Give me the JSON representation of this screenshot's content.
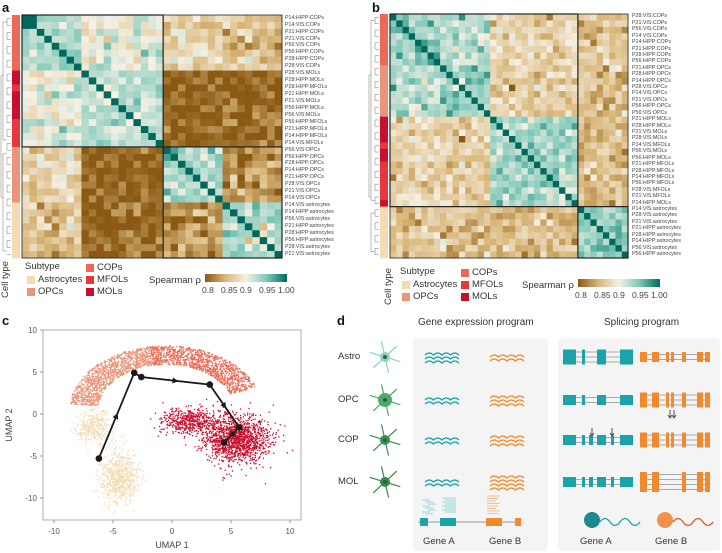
{
  "panels": {
    "a": "a",
    "b": "b",
    "c": "c",
    "d": "d"
  },
  "colors": {
    "Astrocytes": "#f4dbb4",
    "OPCs": "#ea9479",
    "COPs": "#ec6a55",
    "MFOLs": "#e6383a",
    "MOLs": "#c8102e",
    "scale": [
      "#8a5a14",
      "#d9b77a",
      "#f6f1e6",
      "#7fc8b9",
      "#00695c"
    ],
    "teal": "#1aa3a8",
    "orange": "#f08a2c"
  },
  "legend": {
    "cell_type": "Cell type",
    "subtype_title": "Subtype",
    "subtypes": [
      "Astrocytes",
      "OPCs",
      "COPs",
      "MFOLs",
      "MOLs"
    ],
    "spearman": "Spearman ρ",
    "ticks": [
      "0.8",
      "0.85",
      "0.9",
      "0.95",
      "1.00"
    ]
  },
  "chart_data": [
    {
      "type": "heatmap",
      "panel": "a",
      "value_range": [
        0.8,
        1.0
      ],
      "labels": [
        "P14:HIPP:COPs",
        "P14:VIS:COPs",
        "P21:HIPP:COPs",
        "P21:VIS:COPs",
        "P56:VIS:COPs",
        "P56:HIPP:COPs",
        "P28:HIPP:COPs",
        "P28:VIS:COPs",
        "P28:VIS:MOLs",
        "P28:HIPP:MOLs",
        "P28:HIPP:MFOLs",
        "P21:HIPP:MOLs",
        "P21:VIS:MOLs",
        "P56:HIPP:MOLs",
        "P56:VIS:MOLs",
        "P56:HIPP:MFOLs",
        "P21:HIPP:MFOLs",
        "P14:HIPP:MFOLs",
        "P14:VIS:MFOLs",
        "P56:VIS:OPCs",
        "P56:HIPP:OPCs",
        "P28:HIPP:OPCs",
        "P14:HIPP:OPCs",
        "P21:HIPP:OPCs",
        "P28:VIS:OPCs",
        "P21:VIS:OPCs",
        "P14:VIS:OPCs",
        "P14:VIS:astrocytes",
        "P14:HIPP:astrocytes",
        "P56:VIS:astrocytes",
        "P21:HIPP:astrocytes",
        "P28:HIPP:astrocytes",
        "P56:HIPP:astrocytes",
        "P28:VIS:astrocytes",
        "P21:VIS:astrocytes"
      ],
      "group_similarity_approx": {
        "COPs": {
          "COPs": 0.935,
          "OLs": 0.9,
          "OPCs": 0.875,
          "astrocytes": 0.86
        },
        "OLs": {
          "COPs": 0.9,
          "OLs": 0.925,
          "OPCs": 0.805,
          "astrocytes": 0.81
        },
        "OPCs": {
          "COPs": 0.875,
          "OLs": 0.805,
          "OPCs": 0.935,
          "astrocytes": 0.835
        },
        "astrocytes": {
          "COPs": 0.86,
          "OLs": 0.81,
          "OPCs": 0.835,
          "astrocytes": 0.93
        }
      },
      "boxes": [
        [
          0,
          18
        ],
        [
          19,
          34
        ]
      ]
    },
    {
      "type": "heatmap",
      "panel": "b",
      "value_range": [
        0.8,
        1.0
      ],
      "labels": [
        "P28:VIS:COPs",
        "P21:VIS:COPs",
        "P56:VIS:COPs",
        "P14:VIS:COPs",
        "P14:HIPP:COPs",
        "P21:HIPP:COPs",
        "P28:HIPP:COPs",
        "P56:HIPP:COPs",
        "P21:HIPP:OPCs",
        "P28:HIPP:OPCs",
        "P14:HIPP:OPCs",
        "P28:VIS:OPCs",
        "P14:VIS:OPCs",
        "P21:VIS:OPCs",
        "P56:HIPP:OPCs",
        "P56:VIS:OPCs",
        "P21:HIPP:MOLs",
        "P28:HIPP:MOLs",
        "P21:VIS:MOLs",
        "P28:VIS:MOLs",
        "P14:VIS:MFOLs",
        "P56:VIS:MOLs",
        "P56:HIPP:MOLs",
        "P21:HIPP:MFOLs",
        "P28:HIPP:MFOLs",
        "P14:HIPP:MFOLs",
        "P56:HIPP:MFOLs",
        "P28:VIS:MFOLs",
        "P21:VIS:MFOLs",
        "P14:HIPP:MOLs",
        "P14:VIS:astrocytes",
        "P28:VIS:astrocytes",
        "P21:VIS:astrocytes",
        "P21:HIPP:astrocytes",
        "P28:HIPP:astrocytes",
        "P14:HIPP:astrocytes",
        "P56:VIS:astrocytes",
        "P56:HIPP:astrocytes"
      ],
      "group_similarity_approx": {
        "COPs": {
          "COPs": 0.94,
          "OLs": 0.875,
          "OPCs": 0.925,
          "astrocytes": 0.865
        },
        "OLs": {
          "COPs": 0.875,
          "OLs": 0.93,
          "OPCs": 0.87,
          "astrocytes": 0.855
        },
        "OPCs": {
          "COPs": 0.925,
          "OLs": 0.87,
          "OPCs": 0.94,
          "astrocytes": 0.86
        },
        "astrocytes": {
          "COPs": 0.865,
          "OLs": 0.855,
          "OPCs": 0.86,
          "astrocytes": 0.945
        }
      },
      "boxes": [
        [
          0,
          29
        ],
        [
          30,
          37
        ]
      ]
    },
    {
      "type": "scatter",
      "panel": "c",
      "xlabel": "UMAP 1",
      "ylabel": "UMAP 2",
      "xlim": [
        -11,
        11
      ],
      "ylim": [
        -12.5,
        10
      ],
      "xticks": [
        -10,
        -5,
        0,
        5,
        10
      ],
      "yticks": [
        10,
        5,
        0,
        -5,
        -10
      ],
      "clusters": [
        {
          "name": "Astrocytes",
          "center": [
            -4.5,
            -7.5
          ],
          "spread": [
            1.3,
            2.5
          ],
          "n": 700
        },
        {
          "name": "Astrocytes",
          "center": [
            -6.5,
            -1.5
          ],
          "spread": [
            1.4,
            1.6
          ],
          "n": 350
        },
        {
          "name": "OPCs",
          "arc": true,
          "center": [
            -0.5,
            0.5
          ],
          "radius": [
            8,
            7.5
          ],
          "angle": [
            95,
            175
          ],
          "n": 1300
        },
        {
          "name": "COPs",
          "arc": true,
          "center": [
            -0.5,
            0.5
          ],
          "radius": [
            8,
            7.5
          ],
          "angle": [
            20,
            100
          ],
          "n": 1100
        },
        {
          "name": "MOLs",
          "center": [
            5.5,
            -3
          ],
          "spread": [
            2.3,
            2.3
          ],
          "n": 1400
        },
        {
          "name": "MOLs",
          "center": [
            1.5,
            -0.8
          ],
          "spread": [
            2,
            1.3
          ],
          "n": 500
        }
      ],
      "trajectory": [
        [
          -6.2,
          -5.3
        ],
        [
          -3.2,
          4.9
        ],
        [
          -2.6,
          4.4
        ],
        [
          3.2,
          3.5
        ],
        [
          5.7,
          -1.6
        ],
        [
          4.4,
          -3.4
        ]
      ]
    }
  ],
  "panel_d": {
    "gene_expression_title": "Gene expression program",
    "splicing_title": "Splicing program",
    "rows": [
      {
        "label": "Astro",
        "expr_a": 3,
        "expr_b": 2,
        "splice_a": 3,
        "splice_b": 2
      },
      {
        "label": "OPC",
        "expr_a": 2,
        "expr_b": 3,
        "splice_a": 2,
        "splice_b": 3
      },
      {
        "label": "COP",
        "expr_a": 2,
        "expr_b": 3,
        "splice_a": 2,
        "splice_b": 3
      },
      {
        "label": "MOL",
        "expr_a": 2,
        "expr_b": 4,
        "splice_a": 2,
        "splice_b": 4
      }
    ],
    "gene_a": "Gene A",
    "gene_b": "Gene B"
  }
}
